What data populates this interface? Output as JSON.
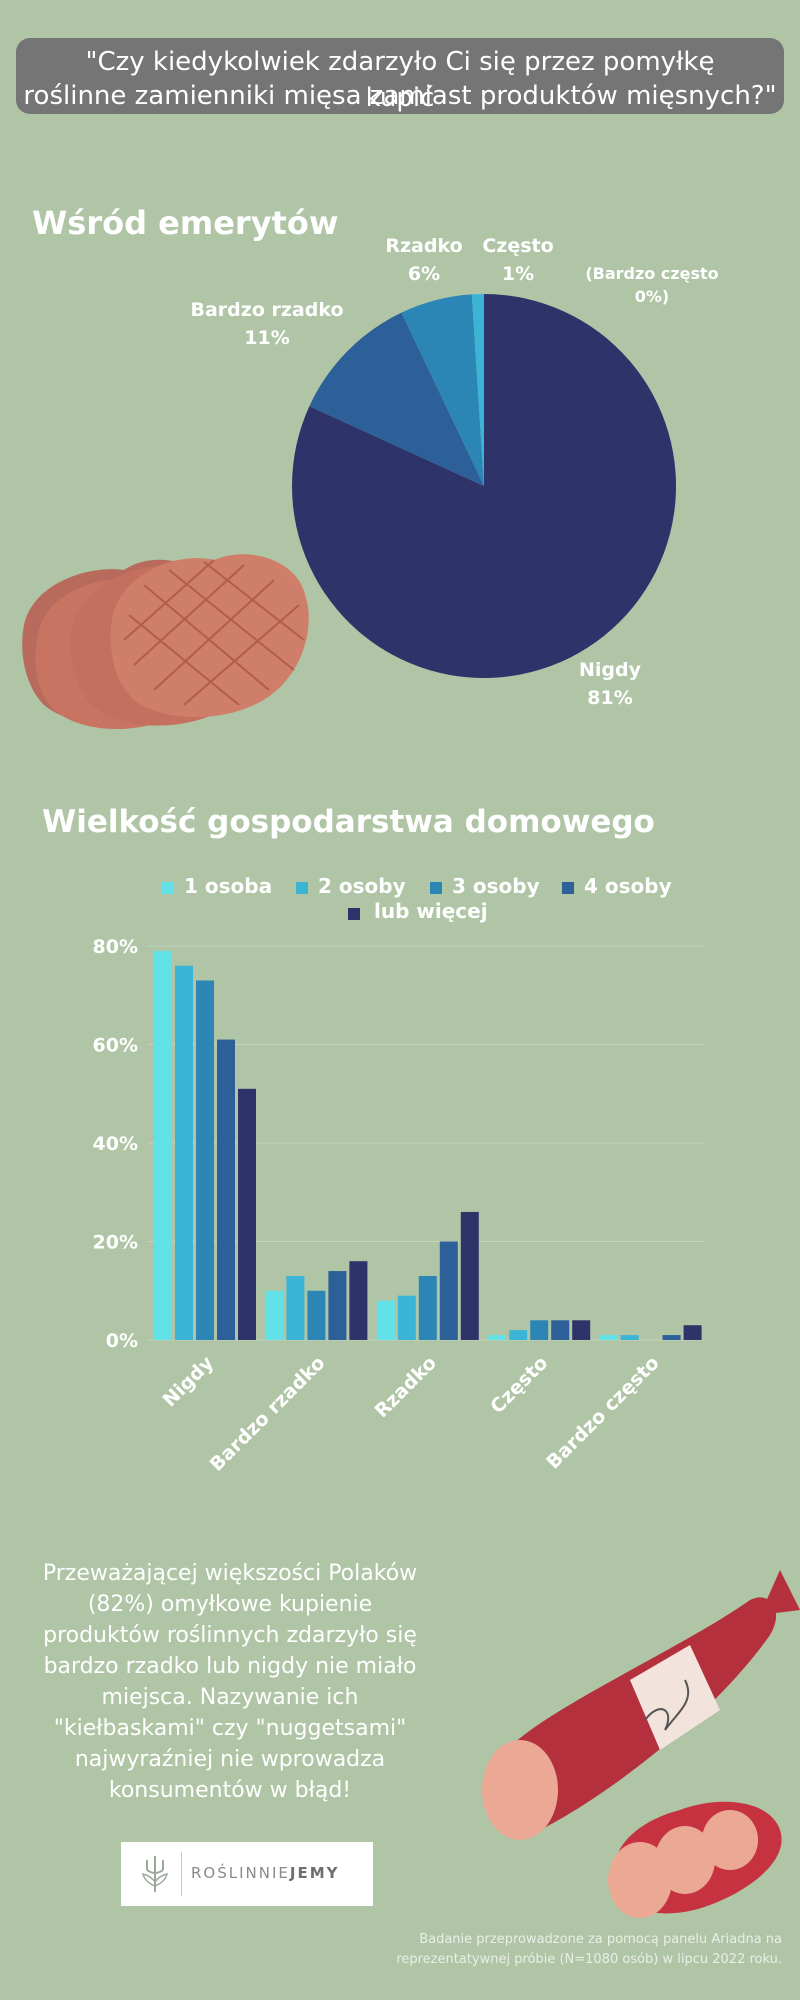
{
  "question": {
    "line1": "\"Czy kiedykolwiek zdarzyło Ci się przez pomyłkę kupić",
    "line2": "roślinne zamienniki mięsa zamiast produktów mięsnych?\""
  },
  "colors": {
    "background": "#afc5a6",
    "question_box": "#757575",
    "series": [
      "#63e1e8",
      "#3bb4d6",
      "#2b86b6",
      "#2d5f98",
      "#2e3369"
    ]
  },
  "chart_data": [
    {
      "type": "pie",
      "title": "Wśród emerytów",
      "slices": [
        {
          "label": "Nigdy",
          "value": 81,
          "value_label": "81%",
          "color": "#2e3369"
        },
        {
          "label": "Bardzo rzadko",
          "value": 11,
          "value_label": "11%",
          "color": "#2d5f98"
        },
        {
          "label": "Rzadko",
          "value": 6,
          "value_label": "6%",
          "color": "#2b86b6"
        },
        {
          "label": "Często",
          "value": 1,
          "value_label": "1%",
          "color": "#3bb4d6"
        },
        {
          "label": "(Bardzo często",
          "value": 0,
          "value_label": "0%)",
          "color": "#63e1e8"
        }
      ]
    },
    {
      "type": "bar",
      "title": "Wielkość gospodarstwa domowego",
      "categories": [
        "Nigdy",
        "Bardzo rzadko",
        "Rzadko",
        "Często",
        "Bardzo często"
      ],
      "series": [
        {
          "name": "1 osoba",
          "values": [
            79,
            10,
            8,
            1,
            1
          ]
        },
        {
          "name": "2 osoby",
          "values": [
            76,
            13,
            9,
            2,
            1
          ]
        },
        {
          "name": "3 osoby",
          "values": [
            73,
            10,
            13,
            4,
            0
          ]
        },
        {
          "name": "4 osoby",
          "values": [
            61,
            14,
            20,
            4,
            1
          ]
        },
        {
          "name": "lub więcej",
          "values": [
            51,
            16,
            26,
            4,
            3
          ]
        }
      ],
      "yticks": [
        "0%",
        "20%",
        "40%",
        "60%",
        "80%"
      ],
      "ylim": [
        0,
        80
      ],
      "grid": true,
      "legend_position": "top"
    }
  ],
  "summary": "Przeważającej większości Polaków (82%) omyłkowe kupienie produktów roślinnych zdarzyło się bardzo rzadko lub nigdy nie miało miejsca. Nazywanie ich \"kiełbaskami\" czy \"nuggetsami\" najwyraźniej nie wprowadza konsumentów w błąd!",
  "logo": {
    "part1": "ROŚLINNIE",
    "part2": "JEMY"
  },
  "footnote": "Badanie przeprowadzone za pomocą panelu Ariadna na reprezentatywnej próbie (N=1080 osób) w lipcu 2022 roku."
}
